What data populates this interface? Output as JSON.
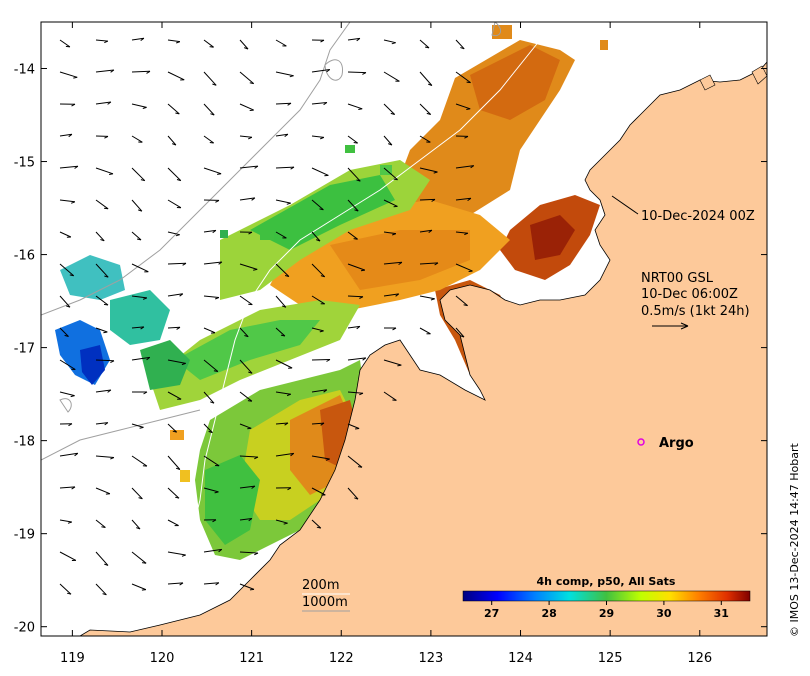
{
  "map": {
    "region": "NW Australia SST composite",
    "xaxis_ticks": [
      "119",
      "120",
      "121",
      "122",
      "123",
      "124",
      "125",
      "126"
    ],
    "yaxis_ticks": [
      "-14",
      "-15",
      "-16",
      "-17",
      "-18",
      "-19",
      "-20"
    ],
    "lon_range": [
      118.65,
      126.75
    ],
    "lat_range": [
      -20.1,
      -13.5
    ]
  },
  "annotations": {
    "timestamp_label": "10-Dec-2024 00Z",
    "current_line1": "NRT00 GSL",
    "current_line2": "10-Dec 06:00Z",
    "current_line3": "0.5m/s (1kt 24h)",
    "argo_label": "Argo",
    "depth_200": "200m",
    "depth_1000": "1000m",
    "credit": "© IMOS 13-Dec-2024 14:47 Hobart"
  },
  "colorbar": {
    "title": "4h comp, p50, All Sats",
    "ticks": [
      "27",
      "28",
      "29",
      "30",
      "31"
    ],
    "range": [
      26.5,
      31.5
    ]
  },
  "colors": {
    "land": "#fdc99a",
    "argo_marker": "#e000e0"
  }
}
